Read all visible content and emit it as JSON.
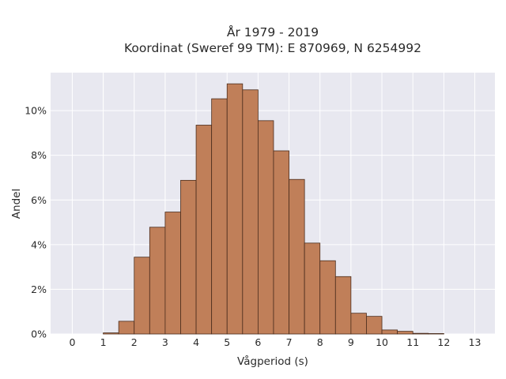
{
  "chart_data": {
    "type": "bar",
    "title": [
      "År 1979 - 2019",
      "Koordinat (Sweref 99 TM): E 870969, N 6254992"
    ],
    "xlabel": "Vågperiod (s)",
    "ylabel": "Andel",
    "xlim": [
      -0.7,
      13.65
    ],
    "ylim": [
      0,
      11.7
    ],
    "x_ticks": [
      0,
      1,
      2,
      3,
      4,
      5,
      6,
      7,
      8,
      9,
      10,
      11,
      12,
      13
    ],
    "y_ticks": [
      {
        "value": 0,
        "label": "0%"
      },
      {
        "value": 2,
        "label": "2%"
      },
      {
        "value": 4,
        "label": "4%"
      },
      {
        "value": 6,
        "label": "6%"
      },
      {
        "value": 8,
        "label": "8%"
      },
      {
        "value": 10,
        "label": "10%"
      }
    ],
    "bin_width": 0.5,
    "bins": [
      {
        "x0": 1.0,
        "value": 0.05
      },
      {
        "x0": 1.5,
        "value": 0.57
      },
      {
        "x0": 2.0,
        "value": 3.44
      },
      {
        "x0": 2.5,
        "value": 4.78
      },
      {
        "x0": 3.0,
        "value": 5.46
      },
      {
        "x0": 3.5,
        "value": 6.88
      },
      {
        "x0": 4.0,
        "value": 9.35
      },
      {
        "x0": 4.5,
        "value": 10.53
      },
      {
        "x0": 5.0,
        "value": 11.2
      },
      {
        "x0": 5.5,
        "value": 10.93
      },
      {
        "x0": 6.0,
        "value": 9.55
      },
      {
        "x0": 6.5,
        "value": 8.2
      },
      {
        "x0": 7.0,
        "value": 6.92
      },
      {
        "x0": 7.5,
        "value": 4.07
      },
      {
        "x0": 8.0,
        "value": 3.28
      },
      {
        "x0": 8.5,
        "value": 2.57
      },
      {
        "x0": 9.0,
        "value": 0.93
      },
      {
        "x0": 9.5,
        "value": 0.79
      },
      {
        "x0": 10.0,
        "value": 0.18
      },
      {
        "x0": 10.5,
        "value": 0.12
      },
      {
        "x0": 11.0,
        "value": 0.03
      },
      {
        "x0": 11.5,
        "value": 0.02
      }
    ],
    "grid": true,
    "colors": {
      "bar_fill": "#c07f59",
      "bar_edge": "#4a2c1c",
      "plot_bg": "#e8e8f0",
      "grid": "#ffffff"
    }
  }
}
